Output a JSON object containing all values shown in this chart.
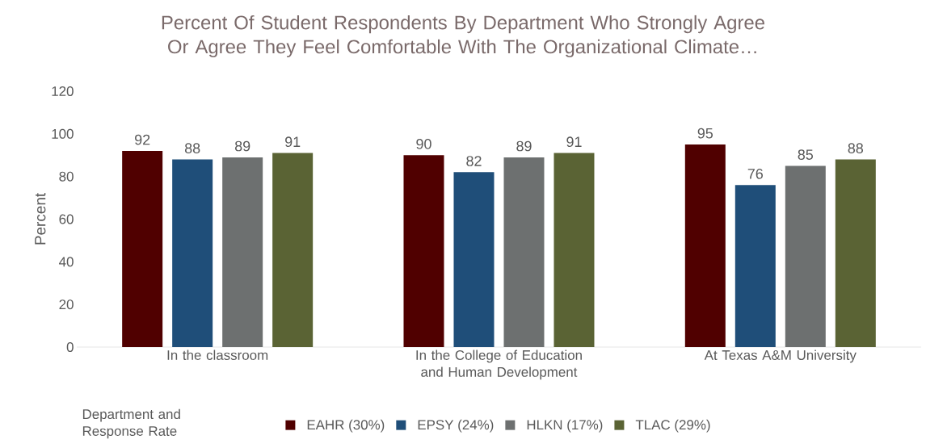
{
  "chart_data": {
    "type": "bar",
    "title": "Percent Of Student Respondents By Department Who Strongly Agree Or Agree They Feel Comfortable With The Organizational Climate…",
    "ylabel": "Percent",
    "legend_title": "Department and Response Rate",
    "categories": [
      "In the classroom",
      "In the College of Education and Human Development",
      "At Texas A&M University"
    ],
    "series": [
      {
        "name": "EAHR (30%)",
        "color": "#500000",
        "values": [
          92,
          90,
          95
        ]
      },
      {
        "name": "EPSY (24%)",
        "color": "#1f4e79",
        "values": [
          88,
          82,
          76
        ]
      },
      {
        "name": "HLKN (17%)",
        "color": "#6d7070",
        "values": [
          89,
          89,
          85
        ]
      },
      {
        "name": "TLAC (29%)",
        "color": "#5a6334",
        "values": [
          91,
          91,
          88
        ]
      }
    ],
    "ylim": [
      0,
      120
    ],
    "yticks": [
      0,
      20,
      40,
      60,
      80,
      100,
      120
    ],
    "data_labels": true,
    "grid": false,
    "legend": "bottom"
  }
}
